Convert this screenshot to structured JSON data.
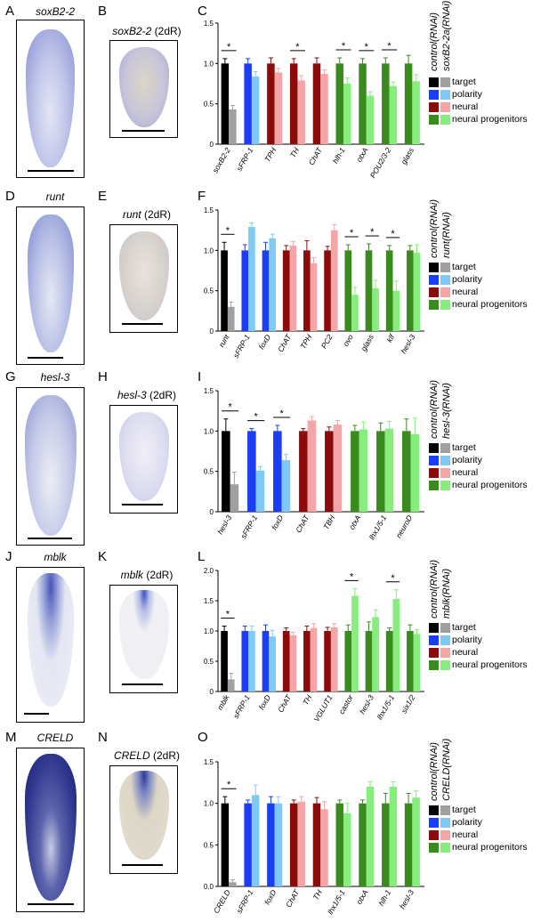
{
  "legend": [
    "target",
    "polarity",
    "neural",
    "neural progenitors"
  ],
  "colors": {
    "target": [
      "#000000",
      "#a0a0a0"
    ],
    "polarity": [
      "#1a3df5",
      "#7fcaf5"
    ],
    "neural": [
      "#8b0b0b",
      "#f4a5a5"
    ],
    "neural progenitors": [
      "#3a8a1e",
      "#86ee7c"
    ]
  },
  "panels": [
    {
      "labels": [
        "A",
        "B",
        "C"
      ],
      "gene": "soxB2-2",
      "gene_2dR": "soxB2-2",
      "suffix": "(2dR)",
      "ctrl_label": "control(RNAi)",
      "rnai_label": "soxB2-2a(RNAi)",
      "chart_data": {
        "type": "bar",
        "ylim": [
          0,
          1.5
        ],
        "yticks": [
          "0",
          "0.5",
          "1.0",
          "1.5"
        ],
        "categories": [
          "soxB2-2",
          "sFRP-1",
          "TPH",
          "TH",
          "ChAT",
          "hlh-1",
          "otxA",
          "POU2/3-2",
          "glass"
        ],
        "groups": [
          "target",
          "polarity",
          "neural",
          "neural",
          "neural",
          "neural progenitors",
          "neural progenitors",
          "neural progenitors",
          "neural progenitors"
        ],
        "control": [
          1.0,
          1.0,
          1.0,
          1.0,
          1.0,
          1.0,
          1.0,
          1.0,
          1.0
        ],
        "control_err": [
          0.06,
          0.06,
          0.07,
          0.06,
          0.07,
          0.07,
          0.06,
          0.07,
          0.1
        ],
        "rnai": [
          0.43,
          0.84,
          0.89,
          0.79,
          0.87,
          0.75,
          0.6,
          0.72,
          0.78
        ],
        "rnai_err": [
          0.05,
          0.06,
          0.05,
          0.06,
          0.05,
          0.07,
          0.05,
          0.05,
          0.08
        ],
        "significant": [
          true,
          false,
          false,
          true,
          false,
          true,
          true,
          true,
          false
        ]
      }
    },
    {
      "labels": [
        "D",
        "E",
        "F"
      ],
      "gene": "runt",
      "gene_2dR": "runt",
      "suffix": "(2dR)",
      "ctrl_label": "control(RNAi)",
      "rnai_label": "runt(RNAi)",
      "chart_data": {
        "type": "bar",
        "ylim": [
          0,
          1.5
        ],
        "yticks": [
          "0",
          "0.5",
          "1.0",
          "1.5"
        ],
        "categories": [
          "runt",
          "sFRP-1",
          "foxD",
          "ChAT",
          "TPH",
          "PC2",
          "ovo",
          "glass",
          "klf",
          "hesl-3"
        ],
        "groups": [
          "target",
          "polarity",
          "polarity",
          "neural",
          "neural",
          "neural",
          "neural progenitors",
          "neural progenitors",
          "neural progenitors",
          "neural progenitors"
        ],
        "control": [
          1.0,
          1.0,
          1.0,
          1.0,
          1.0,
          1.0,
          1.0,
          1.0,
          1.0,
          1.0
        ],
        "control_err": [
          0.1,
          0.07,
          0.1,
          0.06,
          0.12,
          0.05,
          0.07,
          0.08,
          0.06,
          0.06
        ],
        "rnai": [
          0.3,
          1.29,
          1.15,
          1.06,
          0.84,
          1.25,
          0.45,
          0.53,
          0.5,
          0.97
        ],
        "rnai_err": [
          0.06,
          0.05,
          0.05,
          0.05,
          0.07,
          0.07,
          0.09,
          0.1,
          0.12,
          0.1
        ],
        "significant": [
          true,
          false,
          false,
          false,
          false,
          false,
          true,
          true,
          true,
          false
        ]
      }
    },
    {
      "labels": [
        "G",
        "H",
        "I"
      ],
      "gene": "hesl-3",
      "gene_2dR": "hesl-3",
      "suffix": "(2dR)",
      "ctrl_label": "control(RNAi)",
      "rnai_label": "hesl-3(RNAi)",
      "chart_data": {
        "type": "bar",
        "ylim": [
          0,
          1.5
        ],
        "yticks": [
          "0",
          "0.5",
          "1.0",
          "1.5"
        ],
        "categories": [
          "hesl-3",
          "sFRP-1",
          "foxD",
          "ChAT",
          "TBH",
          "otxA",
          "lhx1/5-1",
          "neuroD"
        ],
        "groups": [
          "target",
          "polarity",
          "polarity",
          "neural",
          "neural",
          "neural progenitors",
          "neural progenitors",
          "neural progenitors"
        ],
        "control": [
          1.0,
          1.0,
          1.0,
          1.0,
          1.0,
          1.0,
          1.0,
          1.0
        ],
        "control_err": [
          0.15,
          0.03,
          0.07,
          0.03,
          0.05,
          0.07,
          0.1,
          0.15
        ],
        "rnai": [
          0.34,
          0.51,
          0.64,
          1.13,
          1.08,
          1.02,
          1.03,
          0.96
        ],
        "rnai_err": [
          0.15,
          0.05,
          0.07,
          0.05,
          0.05,
          0.09,
          0.09,
          0.2
        ],
        "significant": [
          true,
          true,
          true,
          false,
          false,
          false,
          false,
          false
        ]
      }
    },
    {
      "labels": [
        "J",
        "K",
        "L"
      ],
      "gene": "mblk",
      "gene_2dR": "mblk",
      "suffix": "(2dR)",
      "ctrl_label": "control(RNAi)",
      "rnai_label": "mblk(RNAi)",
      "chart_data": {
        "type": "bar",
        "ylim": [
          0,
          2.0
        ],
        "yticks": [
          "0",
          "0.5",
          "1.0",
          "1.5",
          "2.0"
        ],
        "categories": [
          "mblk",
          "sFRP-1",
          "foxD",
          "ChAT",
          "TH",
          "VGLUT1",
          "castor",
          "hesl-3",
          "lhx1/5-1",
          "six1/2"
        ],
        "groups": [
          "target",
          "polarity",
          "polarity",
          "neural",
          "neural",
          "neural",
          "neural progenitors",
          "neural progenitors",
          "neural progenitors",
          "neural progenitors"
        ],
        "control": [
          1.0,
          1.0,
          1.0,
          1.0,
          1.0,
          1.0,
          1.0,
          1.0,
          1.0,
          1.0
        ],
        "control_err": [
          0.08,
          0.08,
          0.1,
          0.05,
          0.08,
          0.06,
          0.1,
          0.15,
          0.05,
          0.1
        ],
        "rnai": [
          0.2,
          1.0,
          0.91,
          0.93,
          1.05,
          1.06,
          1.58,
          1.23,
          1.53,
          0.95
        ],
        "rnai_err": [
          0.1,
          0.08,
          0.1,
          0.05,
          0.07,
          0.06,
          0.12,
          0.12,
          0.15,
          0.07
        ],
        "significant": [
          true,
          false,
          false,
          false,
          false,
          false,
          true,
          false,
          true,
          false
        ]
      }
    },
    {
      "labels": [
        "M",
        "N",
        "O"
      ],
      "gene": "CRELD",
      "gene_2dR": "CRELD",
      "suffix": "(2dR)",
      "ctrl_label": "control(RNAi)",
      "rnai_label": "CRELD(RNAi)",
      "chart_data": {
        "type": "bar",
        "ylim": [
          0,
          1.5
        ],
        "yticks": [
          "0.0",
          "0.5",
          "1.0",
          "1.5"
        ],
        "categories": [
          "CRELD",
          "sFRP-1",
          "foxD",
          "ChAT",
          "TH",
          "lhx1/5-1",
          "otxA",
          "hlh-1",
          "hesl-3"
        ],
        "groups": [
          "target",
          "polarity",
          "polarity",
          "neural",
          "neural",
          "neural progenitors",
          "neural progenitors",
          "neural progenitors",
          "neural progenitors"
        ],
        "control": [
          1.0,
          1.0,
          1.0,
          1.0,
          1.0,
          1.0,
          1.0,
          1.0,
          1.0
        ],
        "control_err": [
          0.08,
          0.04,
          0.08,
          0.04,
          0.07,
          0.04,
          0.04,
          0.12,
          0.12
        ],
        "rnai": [
          0.05,
          1.1,
          1.0,
          1.02,
          0.93,
          0.88,
          1.2,
          1.2,
          1.07
        ],
        "rnai_err": [
          0.03,
          0.12,
          0.08,
          0.06,
          0.09,
          0.12,
          0.06,
          0.06,
          0.08
        ],
        "significant": [
          true,
          false,
          false,
          false,
          false,
          false,
          false,
          false,
          false
        ]
      }
    }
  ]
}
